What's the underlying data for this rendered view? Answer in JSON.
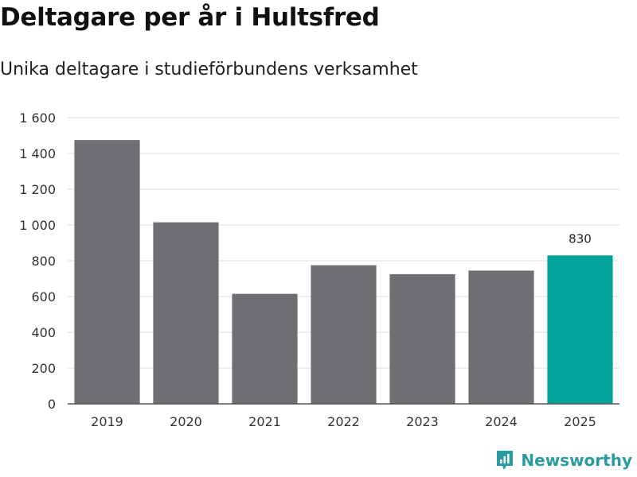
{
  "header": {
    "title": "Deltagare per år i Hultsfred",
    "subtitle": "Unika deltagare i studieförbundens verksamhet"
  },
  "brand": {
    "name": "Newsworthy",
    "icon": "newsworthy-logo-icon",
    "color": "#2a9ba0"
  },
  "colors": {
    "bar_default": "#6f6e73",
    "bar_highlight": "#00a39a",
    "grid": "#dddddd",
    "axis": "#555555"
  },
  "chart_data": {
    "type": "bar",
    "title": "Deltagare per år i Hultsfred",
    "subtitle": "Unika deltagare i studieförbundens verksamhet",
    "xlabel": "",
    "ylabel": "",
    "categories": [
      "2019",
      "2020",
      "2021",
      "2022",
      "2023",
      "2024",
      "2025"
    ],
    "values": [
      1475,
      1015,
      615,
      775,
      725,
      745,
      830
    ],
    "highlight_index": 6,
    "value_labels": [
      null,
      null,
      null,
      null,
      null,
      null,
      "830"
    ],
    "ylim": [
      0,
      1600
    ],
    "yticks": [
      0,
      200,
      400,
      600,
      800,
      1000,
      1200,
      1400,
      1600
    ],
    "ytick_labels": [
      "0",
      "200",
      "400",
      "600",
      "800",
      "1 000",
      "1 200",
      "1 400",
      "1 600"
    ],
    "grid": true,
    "legend": "none"
  }
}
